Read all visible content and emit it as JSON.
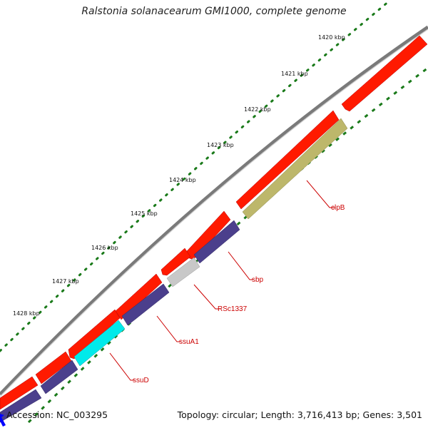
{
  "title": "Ralstonia solanacearum GMI1000, complete genome",
  "footer": {
    "accession": "Accession: NC_003295",
    "summary": "Topology: circular; Length: 3,716,413 bp; Genes: 3,501"
  },
  "ruler": [
    {
      "label": "1420 kbp"
    },
    {
      "label": "1421 kbp"
    },
    {
      "label": "1422 kbp"
    },
    {
      "label": "1423 kbp"
    },
    {
      "label": "1424 kbp"
    },
    {
      "label": "1425 kbp"
    },
    {
      "label": "1426 kbp"
    },
    {
      "label": "1427 kbp"
    },
    {
      "label": "1428 kbp"
    }
  ],
  "gene_labels": [
    {
      "label": "clpB"
    },
    {
      "label": "sbp"
    },
    {
      "label": "RSc1337"
    },
    {
      "label": "ssuA1"
    },
    {
      "label": "ssuD"
    }
  ],
  "colors": {
    "backbone": "#8c8c8c",
    "cds": "#ff0000",
    "cog_purple": "#4b3f8c",
    "cog_olive": "#bdb76b",
    "cog_gray": "#c0c0c0",
    "cog_cyan": "#00e5e5",
    "tick_green": "#1a7a1a",
    "label_red": "#cc0000"
  }
}
